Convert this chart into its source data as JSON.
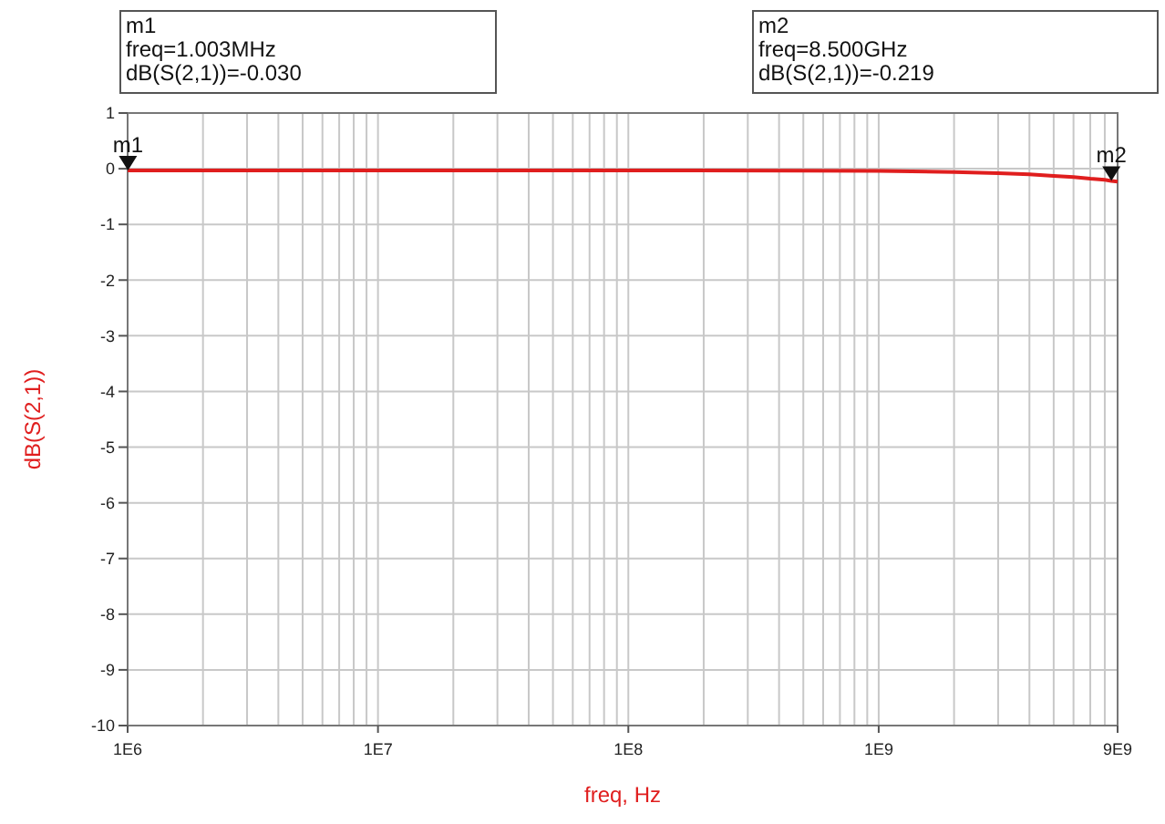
{
  "chart_data": {
    "type": "line",
    "xlabel": "freq, Hz",
    "ylabel": "dB(S(2,1))",
    "log": "x",
    "x": [
      1000000,
      1003000,
      10000000,
      100000000,
      500000000,
      1000000000,
      2000000000,
      3000000000,
      4000000000,
      5000000000,
      6000000000,
      7000000000,
      8000000000,
      8500000000,
      9000000000
    ],
    "series": [
      {
        "color": "#e01e1e",
        "values": [
          -0.03,
          -0.03,
          -0.03,
          -0.03,
          -0.035,
          -0.04,
          -0.06,
          -0.08,
          -0.1,
          -0.13,
          -0.15,
          -0.18,
          -0.2,
          -0.219,
          -0.23
        ]
      }
    ],
    "xlim": [
      1000000,
      9000000000
    ],
    "ylim": [
      -10,
      1
    ],
    "xticks": [
      {
        "value": 1000000,
        "label": "1E6"
      },
      {
        "value": 2000000,
        "label": null
      },
      {
        "value": 3000000,
        "label": null
      },
      {
        "value": 4000000,
        "label": null
      },
      {
        "value": 5000000,
        "label": null
      },
      {
        "value": 6000000,
        "label": null
      },
      {
        "value": 7000000,
        "label": null
      },
      {
        "value": 8000000,
        "label": null
      },
      {
        "value": 9000000,
        "label": null
      },
      {
        "value": 10000000,
        "label": "1E7"
      },
      {
        "value": 20000000,
        "label": null
      },
      {
        "value": 30000000,
        "label": null
      },
      {
        "value": 40000000,
        "label": null
      },
      {
        "value": 50000000,
        "label": null
      },
      {
        "value": 60000000,
        "label": null
      },
      {
        "value": 70000000,
        "label": null
      },
      {
        "value": 80000000,
        "label": null
      },
      {
        "value": 90000000,
        "label": null
      },
      {
        "value": 100000000,
        "label": "1E8"
      },
      {
        "value": 200000000,
        "label": null
      },
      {
        "value": 300000000,
        "label": null
      },
      {
        "value": 400000000,
        "label": null
      },
      {
        "value": 500000000,
        "label": null
      },
      {
        "value": 600000000,
        "label": null
      },
      {
        "value": 700000000,
        "label": null
      },
      {
        "value": 800000000,
        "label": null
      },
      {
        "value": 900000000,
        "label": null
      },
      {
        "value": 1000000000,
        "label": "1E9"
      },
      {
        "value": 2000000000,
        "label": null
      },
      {
        "value": 3000000000,
        "label": null
      },
      {
        "value": 4000000000,
        "label": null
      },
      {
        "value": 5000000000,
        "label": null
      },
      {
        "value": 6000000000,
        "label": null
      },
      {
        "value": 7000000000,
        "label": null
      },
      {
        "value": 8000000000,
        "label": null
      },
      {
        "value": 9000000000,
        "label": "9E9"
      }
    ],
    "yticks": [
      -10,
      -9,
      -8,
      -7,
      -6,
      -5,
      -4,
      -3,
      -2,
      -1,
      0,
      1
    ],
    "grid": true,
    "marker": "none",
    "line_style": "solid",
    "annotations": [
      "m1\nfreq=1.003MHz\ndB(S(2,1))=-0.030",
      "m2\nfreq=8.500GHz\ndB(S(2,1))=-0.219",
      {
        "text": "m1",
        "x": 1003000,
        "y": -0.03
      },
      {
        "text": "m2",
        "x": 8500000000,
        "y": -0.219
      }
    ]
  }
}
